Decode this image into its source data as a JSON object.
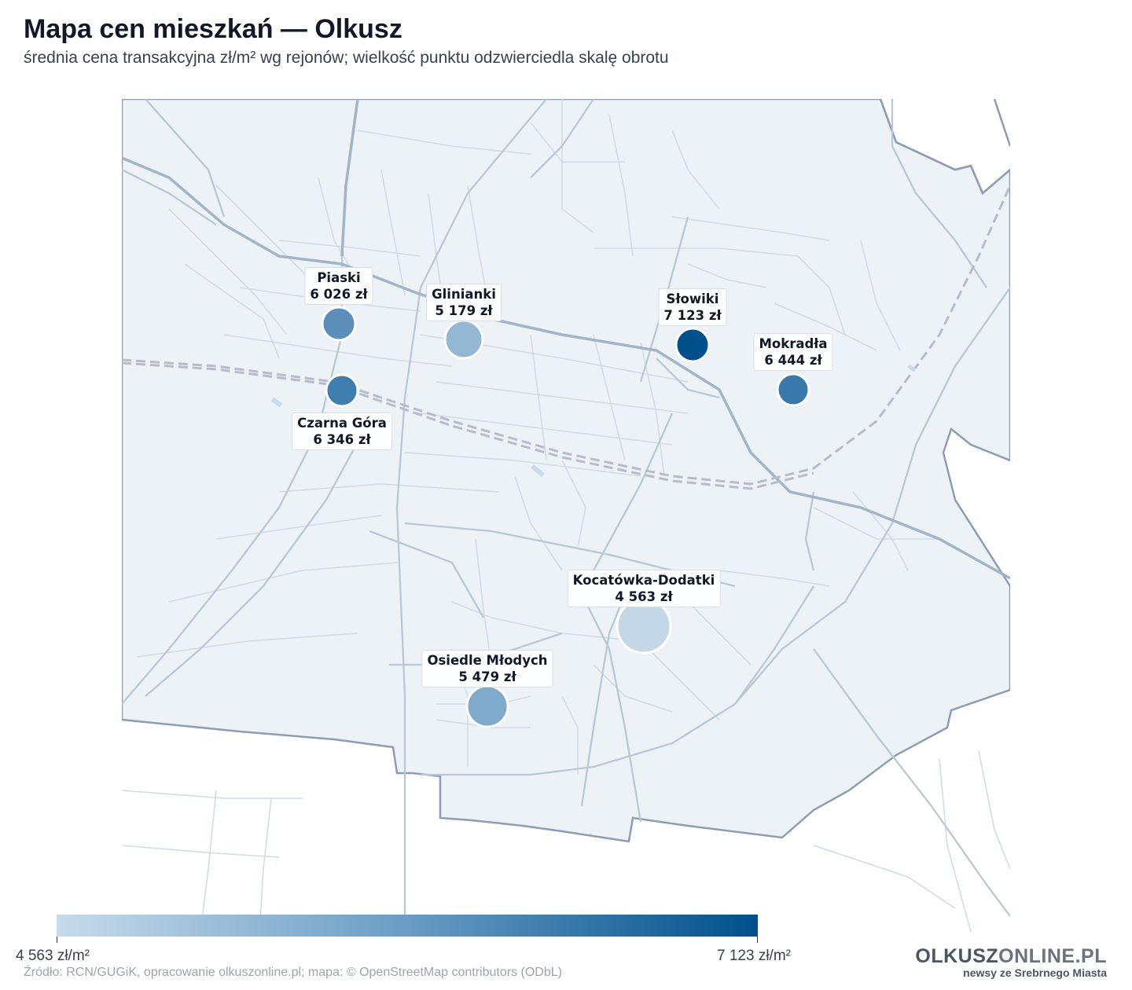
{
  "header": {
    "title": "Mapa cen mieszkań — Olkusz",
    "subtitle": "średnia cena transakcyjna zł/m² wg rejonów; wielkość punktu odzwierciedla skalę obrotu"
  },
  "districts": [
    {
      "name": "Piaski",
      "price": "6 026 zł",
      "price_value": 6026,
      "color": "#5b8fba"
    },
    {
      "name": "Glinianki",
      "price": "5 179 zł",
      "price_value": 5179,
      "color": "#94b8d3"
    },
    {
      "name": "Słowiki",
      "price": "7 123 zł",
      "price_value": 7123,
      "color": "#00508b"
    },
    {
      "name": "Mokradła",
      "price": "6 444 zł",
      "price_value": 6444,
      "color": "#3878aa"
    },
    {
      "name": "Czarna Góra",
      "price": "6 346 zł",
      "price_value": 6346,
      "color": "#3f7eae"
    },
    {
      "name": "Kocatówka-Dodatki",
      "price": "4 563 zł",
      "price_value": 4563,
      "color": "#c3d7e7"
    },
    {
      "name": "Osiedle Młodych",
      "price": "5 479 zł",
      "price_value": 5479,
      "color": "#80aacb"
    }
  ],
  "legend": {
    "min_label": "4 563 zł/m²",
    "max_label": "7 123 zł/m²",
    "min_color": "#c6dbea",
    "max_color": "#00508b"
  },
  "footer": {
    "source": "Źródło: RCN/GUGiK, opracowanie olkuszonline.pl; mapa: © OpenStreetMap contributors (ODbL)",
    "brand_main_a": "OLKUSZ",
    "brand_main_b": "ONLINE.PL",
    "brand_sub": "newsy ze Srebrnego Miasta"
  }
}
